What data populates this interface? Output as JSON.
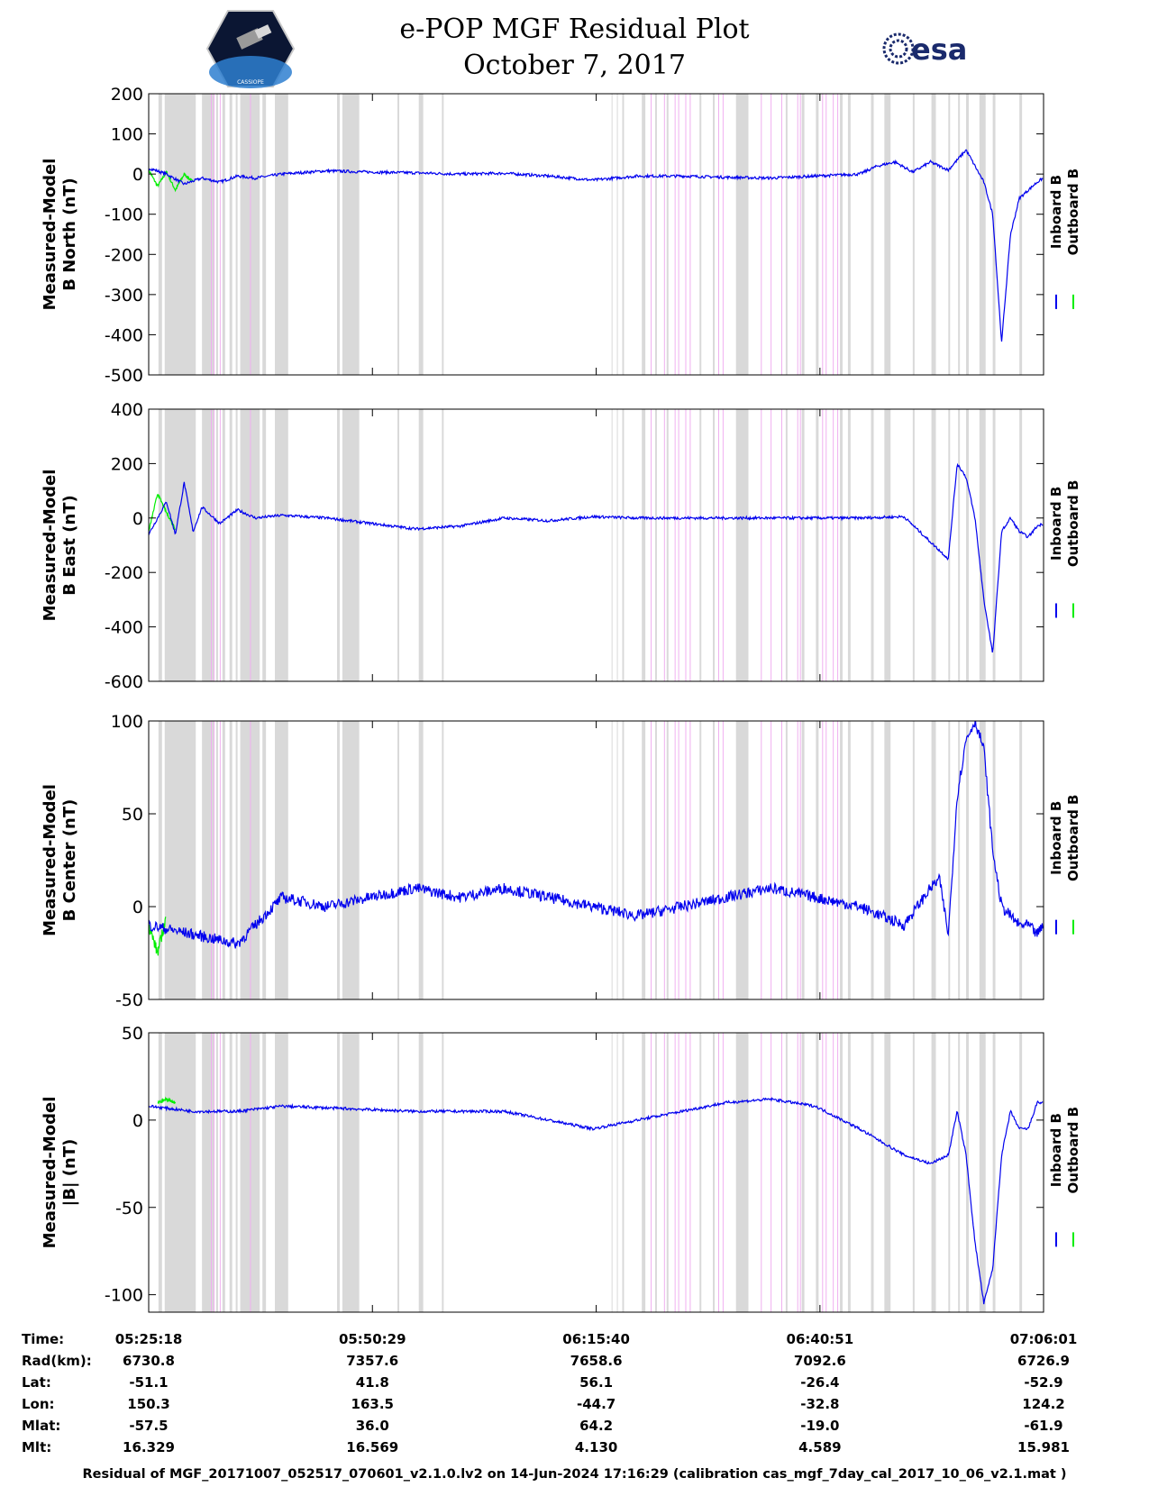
{
  "header": {
    "title_line1": "e-POP MGF Residual Plot",
    "title_line2": "October 7, 2017",
    "logo_left_text": "CASSIOPE",
    "logo_right_text": "esa"
  },
  "colors": {
    "inboard": "#0000ee",
    "outboard": "#00ee00",
    "gap_gray": "#d9d9d9",
    "gap_pink": "#f0b0f0"
  },
  "legend": {
    "inboard": "Inboard B",
    "outboard": "Outboard B"
  },
  "chart_data": [
    {
      "type": "line",
      "id": "north",
      "ylabel_line1": "Measured-Model",
      "ylabel_line2": "B North (nT)",
      "ylim": [
        -500,
        200
      ],
      "yticks": [
        200,
        100,
        0,
        -100,
        -200,
        -300,
        -400,
        -500
      ],
      "xlim_minutes": [
        0,
        100.72
      ],
      "series": [
        {
          "name": "Inboard B",
          "x": [
            0,
            2,
            4,
            6,
            8,
            10,
            12,
            15,
            20,
            25,
            30,
            35,
            40,
            45,
            50,
            55,
            60,
            65,
            70,
            75,
            80,
            82,
            84,
            86,
            88,
            90,
            92,
            93,
            94,
            95,
            96,
            97,
            98,
            99,
            100,
            100.7
          ],
          "y": [
            15,
            0,
            -25,
            -10,
            -20,
            -5,
            -10,
            0,
            8,
            5,
            3,
            0,
            2,
            -5,
            -15,
            -5,
            -5,
            -8,
            -10,
            -5,
            0,
            20,
            30,
            5,
            30,
            10,
            60,
            20,
            -20,
            -100,
            -420,
            -150,
            -60,
            -40,
            -20,
            -10
          ]
        },
        {
          "name": "Outboard B",
          "x": [
            0,
            1,
            2,
            3,
            4,
            5
          ],
          "y": [
            10,
            -30,
            5,
            -40,
            0,
            -20
          ]
        }
      ]
    },
    {
      "type": "line",
      "id": "east",
      "ylabel_line1": "Measured-Model",
      "ylabel_line2": "B East (nT)",
      "ylim": [
        -600,
        400
      ],
      "yticks": [
        400,
        200,
        0,
        -200,
        -400,
        -600
      ],
      "xlim_minutes": [
        0,
        100.72
      ],
      "series": [
        {
          "name": "Inboard B",
          "x": [
            0,
            2,
            3,
            4,
            5,
            6,
            8,
            10,
            12,
            15,
            20,
            25,
            30,
            35,
            40,
            45,
            50,
            55,
            60,
            65,
            70,
            75,
            80,
            85,
            90,
            91,
            92,
            93,
            94,
            95,
            96,
            97,
            98,
            99,
            100,
            100.7
          ],
          "y": [
            -60,
            60,
            -60,
            130,
            -50,
            40,
            -20,
            30,
            0,
            10,
            0,
            -20,
            -40,
            -30,
            0,
            -10,
            5,
            0,
            0,
            0,
            0,
            0,
            0,
            5,
            -150,
            200,
            150,
            0,
            -300,
            -500,
            -50,
            0,
            -50,
            -70,
            -30,
            -20
          ]
        },
        {
          "name": "Outboard B",
          "x": [
            0,
            1,
            2,
            3
          ],
          "y": [
            -50,
            90,
            20,
            -40
          ]
        }
      ]
    },
    {
      "type": "line",
      "id": "center",
      "ylabel_line1": "Measured-Model",
      "ylabel_line2": "B Center (nT)",
      "ylim": [
        -50,
        100
      ],
      "yticks": [
        100,
        50,
        0,
        -50
      ],
      "xlim_minutes": [
        0,
        100.72
      ],
      "series": [
        {
          "name": "Inboard B",
          "x": [
            0,
            5,
            10,
            15,
            20,
            25,
            30,
            35,
            40,
            45,
            50,
            55,
            60,
            65,
            70,
            75,
            80,
            85,
            88,
            89,
            90,
            91,
            92,
            93,
            94,
            95,
            96,
            97,
            98,
            99,
            100,
            100.7
          ],
          "y": [
            -10,
            -15,
            -20,
            5,
            0,
            5,
            10,
            5,
            10,
            5,
            0,
            -5,
            0,
            5,
            10,
            5,
            0,
            -10,
            10,
            15,
            -15,
            60,
            90,
            100,
            85,
            30,
            0,
            -5,
            -10,
            -10,
            -15,
            -10
          ]
        },
        {
          "name": "Outboard B",
          "x": [
            0,
            1,
            2
          ],
          "y": [
            -10,
            -25,
            -5
          ]
        }
      ]
    },
    {
      "type": "line",
      "id": "total",
      "ylabel_line1": "Measured-Model",
      "ylabel_line2": "|B| (nT)",
      "ylim": [
        -110,
        50
      ],
      "yticks": [
        50,
        0,
        -50,
        -100
      ],
      "xlim_minutes": [
        0,
        100.72
      ],
      "series": [
        {
          "name": "Inboard B",
          "x": [
            0,
            5,
            10,
            15,
            20,
            25,
            30,
            35,
            40,
            45,
            50,
            55,
            60,
            65,
            70,
            75,
            80,
            85,
            88,
            90,
            91,
            92,
            93,
            94,
            95,
            96,
            97,
            98,
            99,
            100,
            100.7
          ],
          "y": [
            8,
            5,
            5,
            8,
            7,
            6,
            5,
            5,
            5,
            0,
            -5,
            0,
            5,
            10,
            12,
            8,
            -5,
            -20,
            -25,
            -20,
            5,
            -20,
            -70,
            -105,
            -85,
            -20,
            5,
            -5,
            -5,
            10,
            10
          ]
        },
        {
          "name": "Outboard B",
          "x": [
            1,
            2,
            3
          ],
          "y": [
            10,
            12,
            10
          ]
        }
      ]
    }
  ],
  "gaps": {
    "gray": [
      [
        1.1,
        1.5
      ],
      [
        1.8,
        5.3
      ],
      [
        6.0,
        7.4
      ],
      [
        7.6,
        7.8
      ],
      [
        8.3,
        8.6
      ],
      [
        9.1,
        9.4
      ],
      [
        9.8,
        10.0
      ],
      [
        10.3,
        12.5
      ],
      [
        12.8,
        13.2
      ],
      [
        14.2,
        15.7
      ],
      [
        21.2,
        21.5
      ],
      [
        21.8,
        23.7
      ],
      [
        28.0,
        28.2
      ],
      [
        30.4,
        30.9
      ],
      [
        33.0,
        33.2
      ],
      [
        52.1,
        52.2
      ],
      [
        52.7,
        52.8
      ],
      [
        53.3,
        53.5
      ],
      [
        55.5,
        55.9
      ],
      [
        57.0,
        57.2
      ],
      [
        58.3,
        58.5
      ],
      [
        62.0,
        62.2
      ],
      [
        63.5,
        63.7
      ],
      [
        66.1,
        67.5
      ],
      [
        71.7,
        71.9
      ],
      [
        73.5,
        73.8
      ],
      [
        75.1,
        75.4
      ],
      [
        77.8,
        78.1
      ],
      [
        78.7,
        79.0
      ],
      [
        81.3,
        81.6
      ],
      [
        82.8,
        83.5
      ],
      [
        86.0,
        86.2
      ],
      [
        88.1,
        88.6
      ],
      [
        90.0,
        90.2
      ],
      [
        91.1,
        91.3
      ],
      [
        92.0,
        92.3
      ],
      [
        93.5,
        94.2
      ],
      [
        95.0,
        95.3
      ],
      [
        98.0,
        98.3
      ]
    ],
    "pink": [
      [
        7.0,
        7.1
      ],
      [
        7.3,
        7.4
      ],
      [
        8.0,
        8.1
      ],
      [
        11.4,
        11.5
      ],
      [
        56.5,
        56.6
      ],
      [
        58.0,
        58.1
      ],
      [
        59.2,
        59.3
      ],
      [
        59.6,
        59.7
      ],
      [
        60.4,
        60.5
      ],
      [
        60.9,
        61.0
      ],
      [
        64.1,
        64.2
      ],
      [
        64.6,
        64.7
      ],
      [
        68.9,
        69.0
      ],
      [
        70.0,
        70.1
      ],
      [
        71.2,
        71.3
      ],
      [
        73.0,
        73.1
      ],
      [
        73.3,
        73.4
      ],
      [
        75.8,
        75.9
      ],
      [
        76.2,
        76.3
      ],
      [
        77.0,
        77.1
      ],
      [
        77.5,
        77.6
      ]
    ]
  },
  "time_axis": {
    "labels": [
      "Time:",
      "Rad(km):",
      "Lat:",
      "Lon:",
      "Mlat:",
      "Mlt:"
    ],
    "columns": [
      {
        "minute": 0,
        "values": [
          "05:25:18",
          "6730.8",
          "-51.1",
          "150.3",
          "-57.5",
          "16.329"
        ]
      },
      {
        "minute": 25.18,
        "values": [
          "05:50:29",
          "7357.6",
          "41.8",
          "163.5",
          "36.0",
          "16.569"
        ]
      },
      {
        "minute": 50.37,
        "values": [
          "06:15:40",
          "7658.6",
          "56.1",
          "-44.7",
          "64.2",
          "4.130"
        ]
      },
      {
        "minute": 75.55,
        "values": [
          "06:40:51",
          "7092.6",
          "-26.4",
          "-32.8",
          "-19.0",
          "4.589"
        ]
      },
      {
        "minute": 100.72,
        "values": [
          "07:06:01",
          "6726.9",
          "-52.9",
          "124.2",
          "-61.9",
          "15.981"
        ]
      }
    ]
  },
  "footer": "Residual of MGF_20171007_052517_070601_v2.1.0.lv2 on 14-Jun-2024 17:16:29 (calibration cas_mgf_7day_cal_2017_10_06_v2.1.mat )"
}
